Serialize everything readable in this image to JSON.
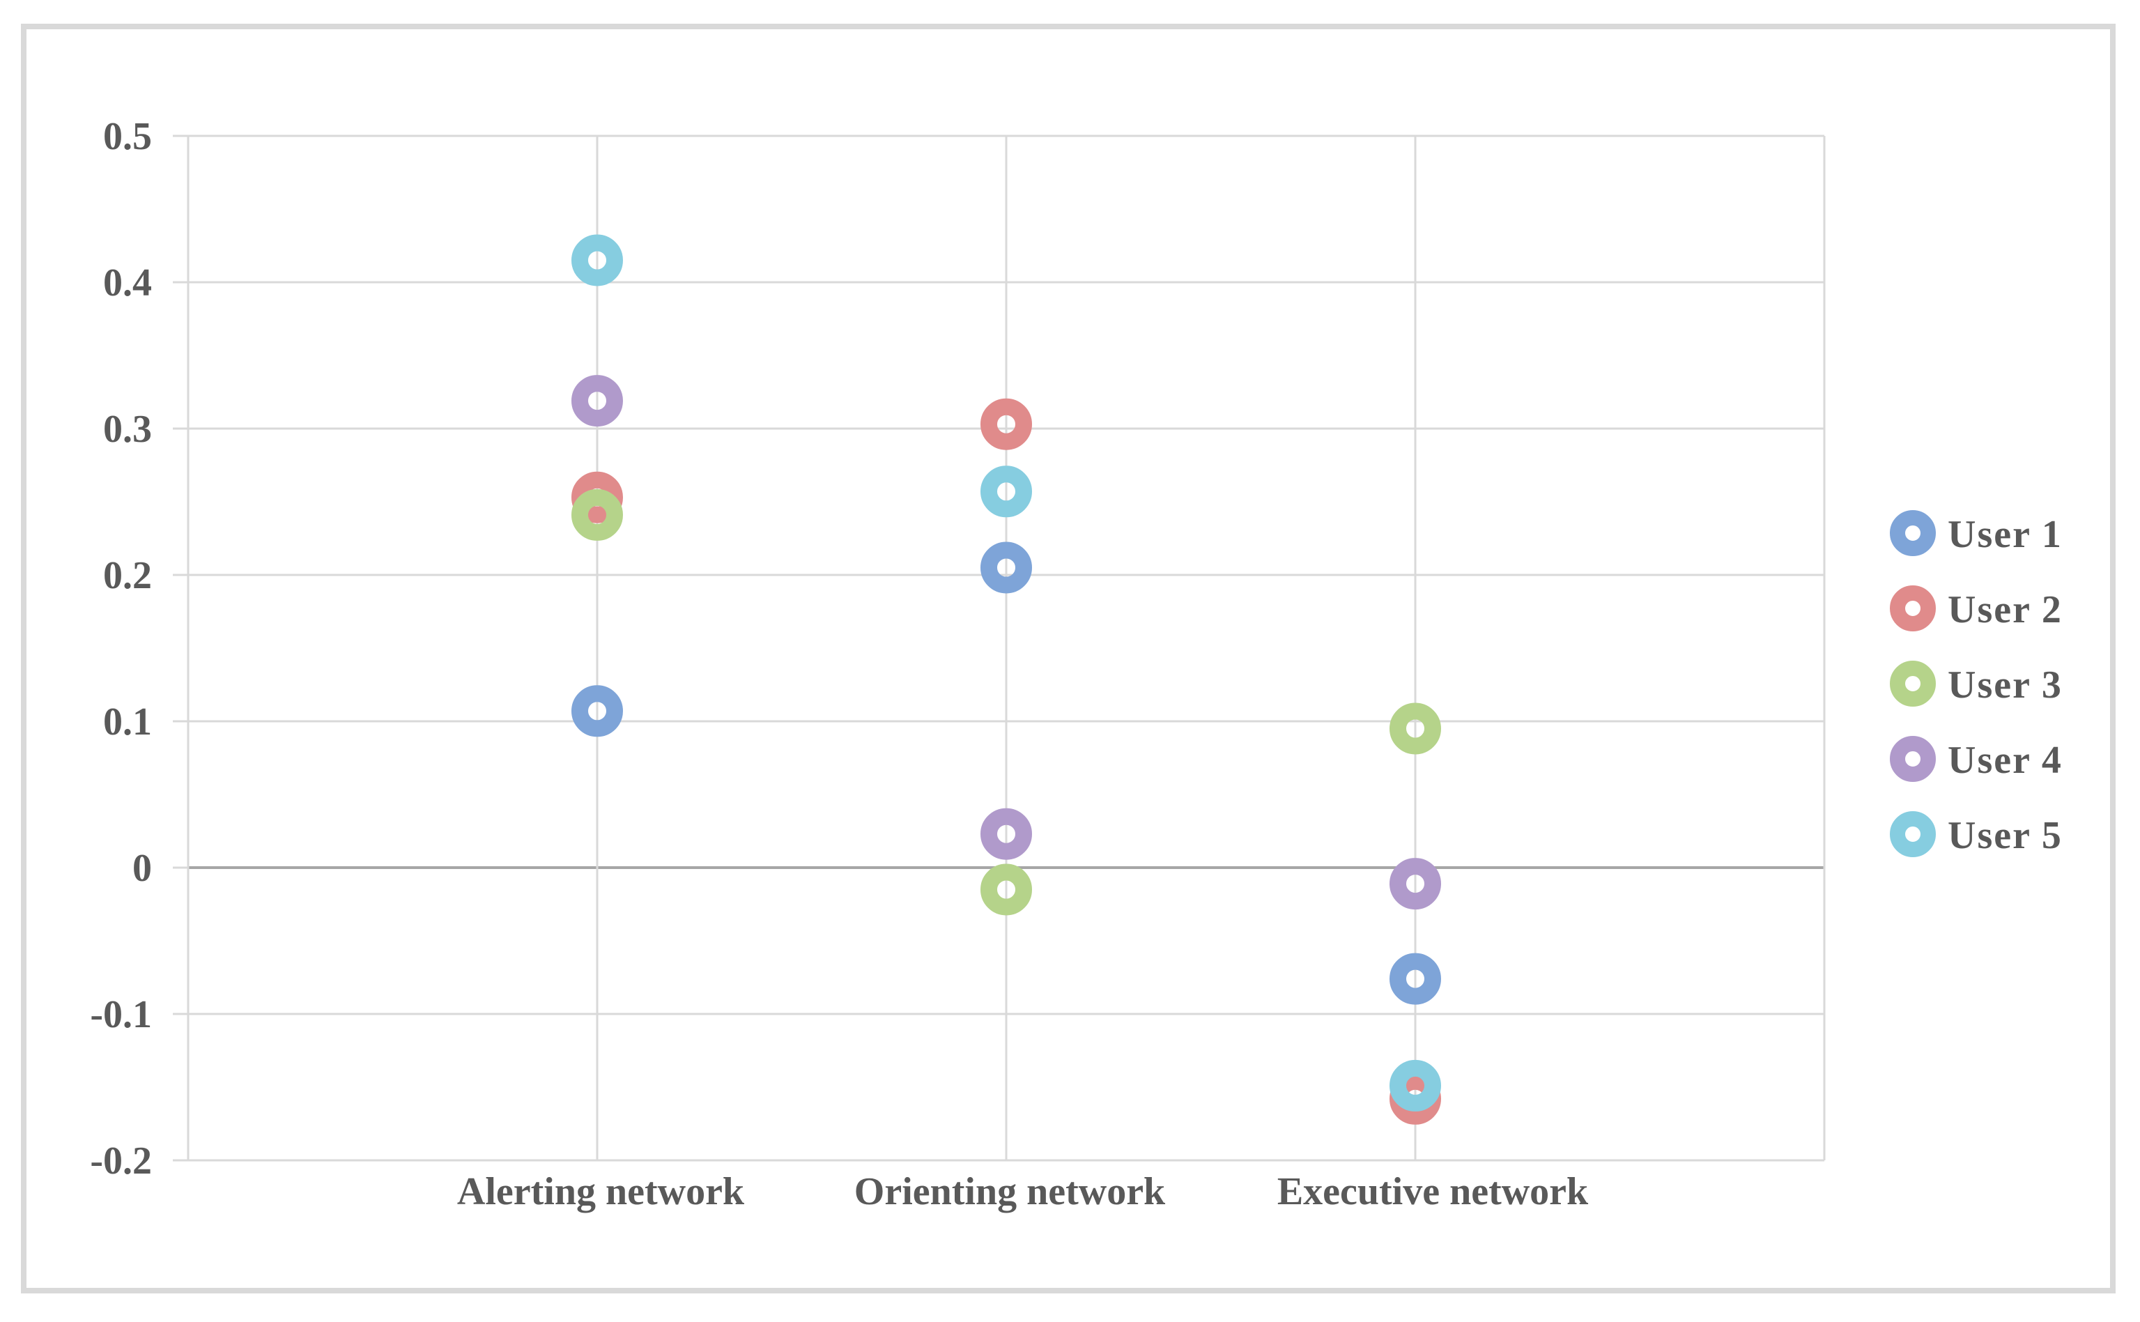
{
  "chart_data": {
    "type": "scatter",
    "categories": [
      "Alerting network",
      "Orienting network",
      "Executive network"
    ],
    "ylim": [
      -0.2,
      0.5
    ],
    "yticks": [
      "0.5",
      "0.4",
      "0.3",
      "0.2",
      "0.1",
      "0",
      "-0.1",
      "-0.2"
    ],
    "ytick_values": [
      0.5,
      0.4,
      0.3,
      0.2,
      0.1,
      0,
      -0.1,
      -0.2
    ],
    "grid": true,
    "legend_position": "right",
    "series": [
      {
        "name": "User 1",
        "color": "#7ea4d8",
        "values": [
          0.107,
          0.205,
          -0.076
        ]
      },
      {
        "name": "User 2",
        "color": "#e08b8b",
        "values": [
          0.253,
          0.303,
          -0.158
        ]
      },
      {
        "name": "User 3",
        "color": "#b5d38a",
        "values": [
          0.241,
          -0.015,
          0.095
        ]
      },
      {
        "name": "User 4",
        "color": "#b09acb",
        "values": [
          0.319,
          0.023,
          -0.011
        ]
      },
      {
        "name": "User 5",
        "color": "#86cde0",
        "values": [
          0.415,
          0.257,
          -0.149
        ]
      }
    ]
  }
}
